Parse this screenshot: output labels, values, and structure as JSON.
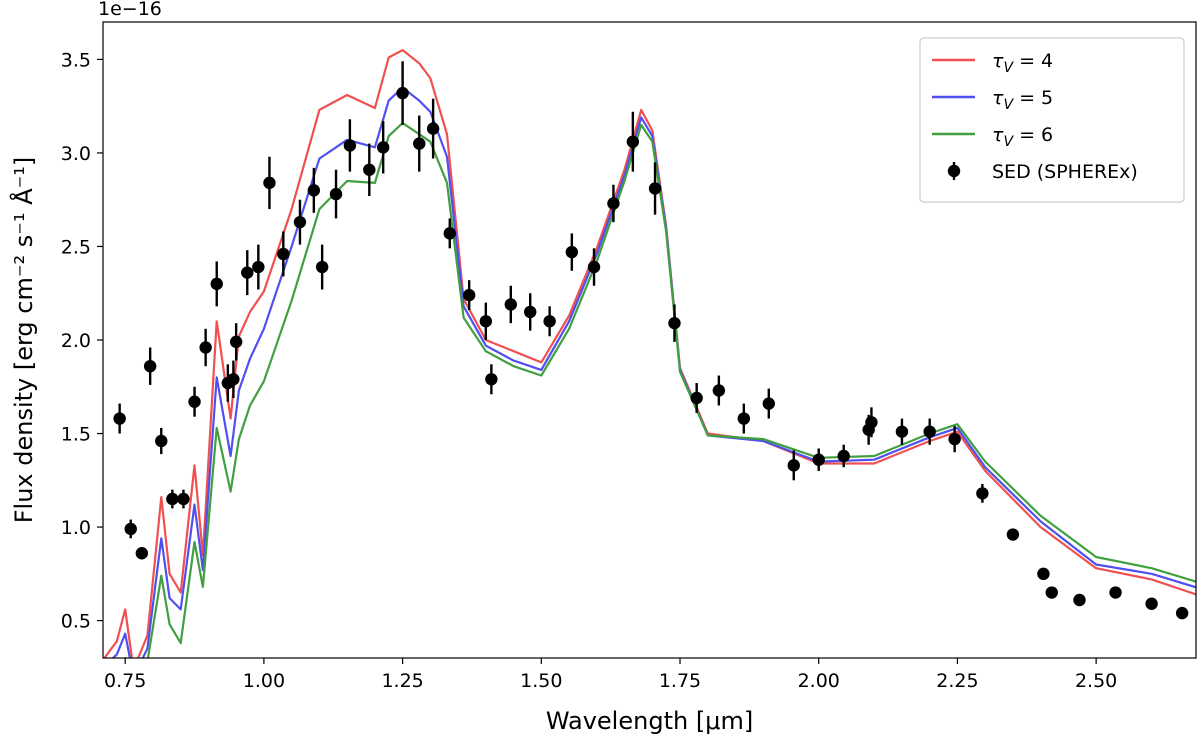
{
  "chart_data": {
    "type": "line",
    "xlabel": "Wavelength [μm]",
    "ylabel": "Flux density [erg cm⁻² s⁻¹ Å⁻¹]",
    "y_offset_label": "1e−16",
    "xlim": [
      0.71,
      2.68
    ],
    "ylim": [
      0.3,
      3.7
    ],
    "xticks": [
      0.75,
      1.0,
      1.25,
      1.5,
      1.75,
      2.0,
      2.25,
      2.5
    ],
    "xtick_labels": [
      "0.75",
      "1.00",
      "1.25",
      "1.50",
      "1.75",
      "2.00",
      "2.25",
      "2.50"
    ],
    "yticks": [
      0.5,
      1.0,
      1.5,
      2.0,
      2.5,
      3.0,
      3.5
    ],
    "ytick_labels": [
      "0.5",
      "1.0",
      "1.5",
      "2.0",
      "2.5",
      "3.0",
      "3.5"
    ],
    "grid": false,
    "legend_position": "top-right",
    "series": [
      {
        "name": "τV = 4",
        "legend_base": "τ",
        "legend_sub": "V",
        "legend_rest": " = 4",
        "color": "#f05050",
        "x": [
          0.7,
          0.735,
          0.75,
          0.765,
          0.79,
          0.815,
          0.83,
          0.85,
          0.875,
          0.89,
          0.915,
          0.94,
          0.955,
          0.975,
          1.0,
          1.05,
          1.1,
          1.15,
          1.2,
          1.225,
          1.25,
          1.28,
          1.3,
          1.33,
          1.36,
          1.4,
          1.45,
          1.5,
          1.55,
          1.6,
          1.65,
          1.68,
          1.7,
          1.725,
          1.75,
          1.8,
          1.9,
          2.0,
          2.1,
          2.2,
          2.25,
          2.3,
          2.4,
          2.5,
          2.6,
          2.7
        ],
        "y": [
          0.25,
          0.39,
          0.56,
          0.24,
          0.42,
          1.16,
          0.75,
          0.65,
          1.33,
          0.85,
          2.1,
          1.58,
          2.02,
          2.15,
          2.26,
          2.7,
          3.23,
          3.31,
          3.24,
          3.51,
          3.55,
          3.48,
          3.4,
          3.1,
          2.22,
          2.0,
          1.94,
          1.88,
          2.13,
          2.49,
          2.91,
          3.23,
          3.12,
          2.61,
          1.85,
          1.5,
          1.46,
          1.34,
          1.34,
          1.46,
          1.51,
          1.3,
          1.0,
          0.78,
          0.72,
          0.62
        ]
      },
      {
        "name": "τV = 5",
        "legend_base": "τ",
        "legend_sub": "V",
        "legend_rest": " = 5",
        "color": "#5050f0",
        "x": [
          0.7,
          0.735,
          0.75,
          0.765,
          0.79,
          0.815,
          0.83,
          0.85,
          0.875,
          0.89,
          0.915,
          0.94,
          0.955,
          0.975,
          1.0,
          1.05,
          1.1,
          1.15,
          1.2,
          1.225,
          1.25,
          1.28,
          1.3,
          1.33,
          1.36,
          1.4,
          1.45,
          1.5,
          1.55,
          1.6,
          1.65,
          1.68,
          1.7,
          1.725,
          1.75,
          1.8,
          1.9,
          2.0,
          2.1,
          2.2,
          2.25,
          2.3,
          2.4,
          2.5,
          2.6,
          2.7
        ],
        "y": [
          0.22,
          0.32,
          0.43,
          0.2,
          0.35,
          0.94,
          0.62,
          0.56,
          1.12,
          0.77,
          1.8,
          1.38,
          1.73,
          1.9,
          2.06,
          2.5,
          2.97,
          3.07,
          3.03,
          3.28,
          3.35,
          3.28,
          3.22,
          2.98,
          2.18,
          1.97,
          1.89,
          1.84,
          2.1,
          2.46,
          2.88,
          3.19,
          3.09,
          2.6,
          1.84,
          1.49,
          1.46,
          1.35,
          1.36,
          1.48,
          1.53,
          1.32,
          1.03,
          0.8,
          0.75,
          0.66
        ]
      },
      {
        "name": "τV = 6",
        "legend_base": "τ",
        "legend_sub": "V",
        "legend_rest": " = 6",
        "color": "#40a040",
        "x": [
          0.7,
          0.735,
          0.75,
          0.765,
          0.79,
          0.815,
          0.83,
          0.85,
          0.875,
          0.89,
          0.915,
          0.94,
          0.955,
          0.975,
          1.0,
          1.05,
          1.1,
          1.15,
          1.2,
          1.225,
          1.25,
          1.28,
          1.3,
          1.33,
          1.36,
          1.4,
          1.45,
          1.5,
          1.55,
          1.6,
          1.65,
          1.68,
          1.7,
          1.725,
          1.75,
          1.8,
          1.9,
          2.0,
          2.1,
          2.2,
          2.25,
          2.3,
          2.4,
          2.5,
          2.6,
          2.7
        ],
        "y": [
          0.2,
          0.25,
          0.3,
          0.18,
          0.28,
          0.74,
          0.48,
          0.38,
          0.92,
          0.68,
          1.53,
          1.19,
          1.47,
          1.65,
          1.78,
          2.21,
          2.7,
          2.85,
          2.84,
          3.09,
          3.16,
          3.1,
          3.06,
          2.84,
          2.12,
          1.94,
          1.86,
          1.81,
          2.06,
          2.42,
          2.85,
          3.15,
          3.06,
          2.58,
          1.83,
          1.49,
          1.47,
          1.37,
          1.38,
          1.5,
          1.55,
          1.35,
          1.06,
          0.84,
          0.78,
          0.69
        ]
      }
    ],
    "points": {
      "name": "SED (SPHEREx)",
      "color": "#000000",
      "x": [
        0.74,
        0.76,
        0.78,
        0.795,
        0.815,
        0.835,
        0.855,
        0.875,
        0.895,
        0.915,
        0.935,
        0.945,
        0.95,
        0.97,
        0.99,
        1.01,
        1.035,
        1.065,
        1.09,
        1.105,
        1.13,
        1.155,
        1.19,
        1.215,
        1.25,
        1.28,
        1.305,
        1.335,
        1.37,
        1.4,
        1.41,
        1.445,
        1.48,
        1.515,
        1.555,
        1.595,
        1.63,
        1.665,
        1.705,
        1.74,
        1.78,
        1.82,
        1.865,
        1.91,
        1.955,
        2.0,
        2.045,
        2.09,
        2.095,
        2.15,
        2.2,
        2.245,
        2.295,
        2.35,
        2.405,
        2.42,
        2.47,
        2.535,
        2.6,
        2.655
      ],
      "y": [
        1.58,
        0.99,
        0.86,
        1.86,
        1.46,
        1.15,
        1.15,
        1.67,
        1.96,
        2.3,
        1.77,
        1.79,
        1.99,
        2.36,
        2.39,
        2.84,
        2.46,
        2.63,
        2.8,
        2.39,
        2.78,
        3.04,
        2.91,
        3.03,
        3.32,
        3.05,
        3.13,
        2.57,
        2.24,
        2.1,
        1.79,
        2.19,
        2.15,
        2.1,
        2.47,
        2.39,
        2.73,
        3.06,
        2.81,
        2.09,
        1.69,
        1.73,
        1.58,
        1.66,
        1.33,
        1.36,
        1.38,
        1.52,
        1.56,
        1.51,
        1.51,
        1.47,
        1.18,
        0.96,
        0.75,
        0.65,
        0.61,
        0.65,
        0.59,
        0.54
      ],
      "err": [
        0.08,
        0.05,
        0.0,
        0.1,
        0.07,
        0.05,
        0.05,
        0.08,
        0.1,
        0.12,
        0.1,
        0.1,
        0.1,
        0.12,
        0.12,
        0.14,
        0.12,
        0.12,
        0.12,
        0.12,
        0.13,
        0.14,
        0.14,
        0.14,
        0.17,
        0.15,
        0.16,
        0.08,
        0.08,
        0.1,
        0.08,
        0.1,
        0.1,
        0.08,
        0.1,
        0.1,
        0.1,
        0.16,
        0.14,
        0.1,
        0.08,
        0.08,
        0.08,
        0.08,
        0.08,
        0.06,
        0.06,
        0.08,
        0.08,
        0.07,
        0.07,
        0.07,
        0.05,
        0.0,
        0.0,
        0.0,
        0.0,
        0.0,
        0.0,
        0.0
      ]
    }
  }
}
